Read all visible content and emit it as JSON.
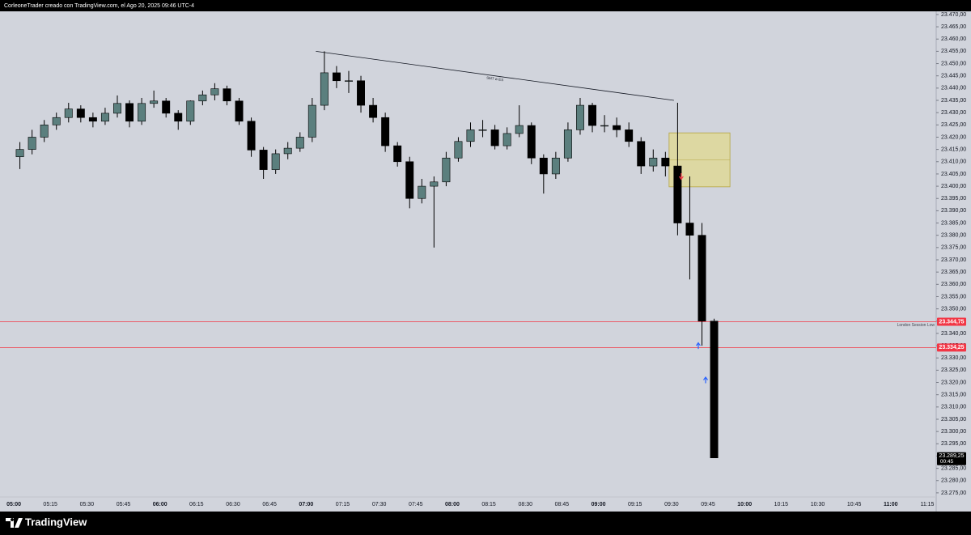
{
  "header": {
    "text": "CorleoneTrader creado con TradingView.com, el Ago 20, 2025 09:46 UTC-4"
  },
  "footer": {
    "brand": "TradingView"
  },
  "chart_data": {
    "type": "candlestick",
    "up_color": "#5b7f7e",
    "down_color": "#000000",
    "x": [
      "05:00",
      "05:05",
      "05:10",
      "05:15",
      "05:20",
      "05:25",
      "05:30",
      "05:35",
      "05:40",
      "05:45",
      "05:50",
      "05:55",
      "06:00",
      "06:05",
      "06:10",
      "06:15",
      "06:20",
      "06:25",
      "06:30",
      "06:35",
      "06:40",
      "06:45",
      "06:50",
      "06:55",
      "07:00",
      "07:05",
      "07:10",
      "07:15",
      "07:20",
      "07:25",
      "07:30",
      "07:35",
      "07:40",
      "07:45",
      "07:50",
      "07:55",
      "08:00",
      "08:05",
      "08:10",
      "08:15",
      "08:20",
      "08:25",
      "08:30",
      "08:35",
      "08:40",
      "08:45",
      "08:50",
      "08:55",
      "09:00",
      "09:05",
      "09:10",
      "09:15",
      "09:20",
      "09:25",
      "09:30",
      "09:35",
      "09:40",
      "09:45"
    ],
    "open": [
      23412,
      23415,
      23420,
      23425,
      23428,
      23431.5,
      23428,
      23426.5,
      23429.75,
      23433.75,
      23426.5,
      23433.75,
      23434.75,
      23429.75,
      23426.5,
      23434.75,
      23437.25,
      23439.75,
      23434.75,
      23426.5,
      23414.75,
      23406.75,
      23413.25,
      23415.5,
      23420,
      23433,
      23446.25,
      23443,
      23443,
      23433,
      23428,
      23416.5,
      23410,
      23395,
      23400,
      23401.75,
      23411.5,
      23418.25,
      23423,
      23423,
      23416.5,
      23421.5,
      23424.75,
      23411.5,
      23405,
      23411.5,
      23423,
      23433,
      23424.75,
      23424.75,
      23423,
      23418.25,
      23408.25,
      23411.5,
      23408.25,
      23385,
      23380,
      23345
    ],
    "high": [
      23418,
      23423,
      23427,
      23430,
      23434,
      23433,
      23430,
      23432,
      23437,
      23435,
      23436,
      23439,
      23436,
      23431,
      23435,
      23439,
      23442,
      23441,
      23436,
      23428,
      23416,
      23415,
      23418,
      23422,
      23436,
      23455,
      23449,
      23447,
      23445,
      23436,
      23430,
      23418,
      23412,
      23403,
      23404,
      23414,
      23420,
      23426,
      23427,
      23425,
      23424,
      23433,
      23426,
      23413,
      23414,
      23426,
      23436,
      23434,
      23429,
      23428,
      23426,
      23420,
      23415,
      23414,
      23434,
      23404,
      23385,
      23346
    ],
    "low": [
      23407,
      23413,
      23418,
      23423,
      23426,
      23426,
      23424,
      23425,
      23428,
      23424,
      23425,
      23432,
      23428,
      23423,
      23425,
      23433,
      23435,
      23433,
      23425,
      23412,
      23403,
      23405,
      23411,
      23414,
      23418,
      23431,
      23440,
      23438,
      23430,
      23426,
      23414,
      23408,
      23391,
      23393,
      23375,
      23400,
      23410,
      23416,
      23420,
      23415,
      23415,
      23420,
      23409,
      23397,
      23403,
      23410,
      23421,
      23422,
      23422,
      23420,
      23416,
      23405,
      23406,
      23404,
      23380,
      23362,
      23335,
      23289.25
    ],
    "close": [
      23415,
      23420,
      23425,
      23428,
      23431.5,
      23428,
      23426.5,
      23429.75,
      23433.75,
      23426.5,
      23433.75,
      23434.75,
      23429.75,
      23426.5,
      23434.75,
      23437.25,
      23439.75,
      23434.75,
      23426.5,
      23414.75,
      23406.75,
      23413.25,
      23415.5,
      23420,
      23433,
      23446.25,
      23443,
      23443,
      23433,
      23428,
      23416.5,
      23410,
      23395,
      23400,
      23401.75,
      23411.5,
      23418.25,
      23423,
      23423,
      23416.5,
      23421.5,
      23424.75,
      23411.5,
      23405,
      23411.5,
      23423,
      23433,
      23424.75,
      23424.75,
      23423,
      23418.25,
      23408.25,
      23411.5,
      23408.25,
      23385,
      23380,
      23345,
      23289.25
    ],
    "xlim": [
      "04:56",
      "11:18"
    ],
    "xticks": [
      "05:00",
      "05:15",
      "05:30",
      "05:45",
      "06:00",
      "06:15",
      "06:30",
      "06:45",
      "07:00",
      "07:15",
      "07:30",
      "07:45",
      "08:00",
      "08:15",
      "08:30",
      "08:45",
      "09:00",
      "09:15",
      "09:30",
      "09:45",
      "10:00",
      "10:15",
      "10:30",
      "10:45",
      "11:00",
      "11:15"
    ],
    "ylim": [
      23268.7,
      23471.3
    ],
    "yticks": [
      {
        "value": 23275,
        "label": "23.275,00"
      },
      {
        "value": 23280,
        "label": "23.280,00"
      },
      {
        "value": 23285,
        "label": "23.285,00"
      },
      {
        "value": 23290,
        "label": "23.290,00"
      },
      {
        "value": 23295,
        "label": "23.295,00"
      },
      {
        "value": 23300,
        "label": "23.300,00"
      },
      {
        "value": 23305,
        "label": "23.305,00"
      },
      {
        "value": 23310,
        "label": "23.310,00"
      },
      {
        "value": 23315,
        "label": "23.315,00"
      },
      {
        "value": 23320,
        "label": "23.320,00"
      },
      {
        "value": 23325,
        "label": "23.325,00"
      },
      {
        "value": 23330,
        "label": "23.330,00"
      },
      {
        "value": 23335,
        "label": "23.335,00"
      },
      {
        "value": 23340,
        "label": "23.340,00"
      },
      {
        "value": 23345,
        "label": "23.345,00"
      },
      {
        "value": 23350,
        "label": "23.350,00"
      },
      {
        "value": 23355,
        "label": "23.355,00"
      },
      {
        "value": 23360,
        "label": "23.360,00"
      },
      {
        "value": 23365,
        "label": "23.365,00"
      },
      {
        "value": 23370,
        "label": "23.370,00"
      },
      {
        "value": 23375,
        "label": "23.375,00"
      },
      {
        "value": 23380,
        "label": "23.380,00"
      },
      {
        "value": 23385,
        "label": "23.385,00"
      },
      {
        "value": 23390,
        "label": "23.390,00"
      },
      {
        "value": 23395,
        "label": "23.395,00"
      },
      {
        "value": 23400,
        "label": "23.400,00"
      },
      {
        "value": 23405,
        "label": "23.405,00"
      },
      {
        "value": 23410,
        "label": "23.410,00"
      },
      {
        "value": 23415,
        "label": "23.415,00"
      },
      {
        "value": 23420,
        "label": "23.420,00"
      },
      {
        "value": 23425,
        "label": "23.425,00"
      },
      {
        "value": 23430,
        "label": "23.430,00"
      },
      {
        "value": 23435,
        "label": "23.435,00"
      },
      {
        "value": 23440,
        "label": "23.440,00"
      },
      {
        "value": 23445,
        "label": "23.445,00"
      },
      {
        "value": 23450,
        "label": "23.450,00"
      },
      {
        "value": 23455,
        "label": "23.455,00"
      },
      {
        "value": 23460,
        "label": "23.460,00"
      },
      {
        "value": 23465,
        "label": "23.465,00"
      },
      {
        "value": 23470,
        "label": "23.470,00"
      }
    ],
    "levels": [
      {
        "value": 23344.75,
        "label": "23.344,75",
        "color": "#f23645",
        "note": "London Session Low"
      },
      {
        "value": 23334.25,
        "label": "23.334,25",
        "color": "#f23645"
      }
    ],
    "last_price": {
      "value": 23289.25,
      "label": "23.289,25",
      "countdown": "00:45"
    },
    "trendline": {
      "label": "SMT w ES",
      "x": [
        "07:04",
        "09:31"
      ],
      "price": [
        23455,
        23435
      ]
    },
    "zone": {
      "x": [
        "09:29",
        "09:54"
      ],
      "price": [
        23399.75,
        23421.75
      ],
      "mid": 23410.75
    },
    "arrows": [
      {
        "x": "09:34",
        "price": 23404,
        "direction": "down",
        "color": "#f23645"
      },
      {
        "x": "09:41",
        "price": 23335,
        "direction": "up",
        "color": "#2962ff"
      },
      {
        "x": "09:44",
        "price": 23321,
        "direction": "up",
        "color": "#2962ff"
      }
    ]
  }
}
